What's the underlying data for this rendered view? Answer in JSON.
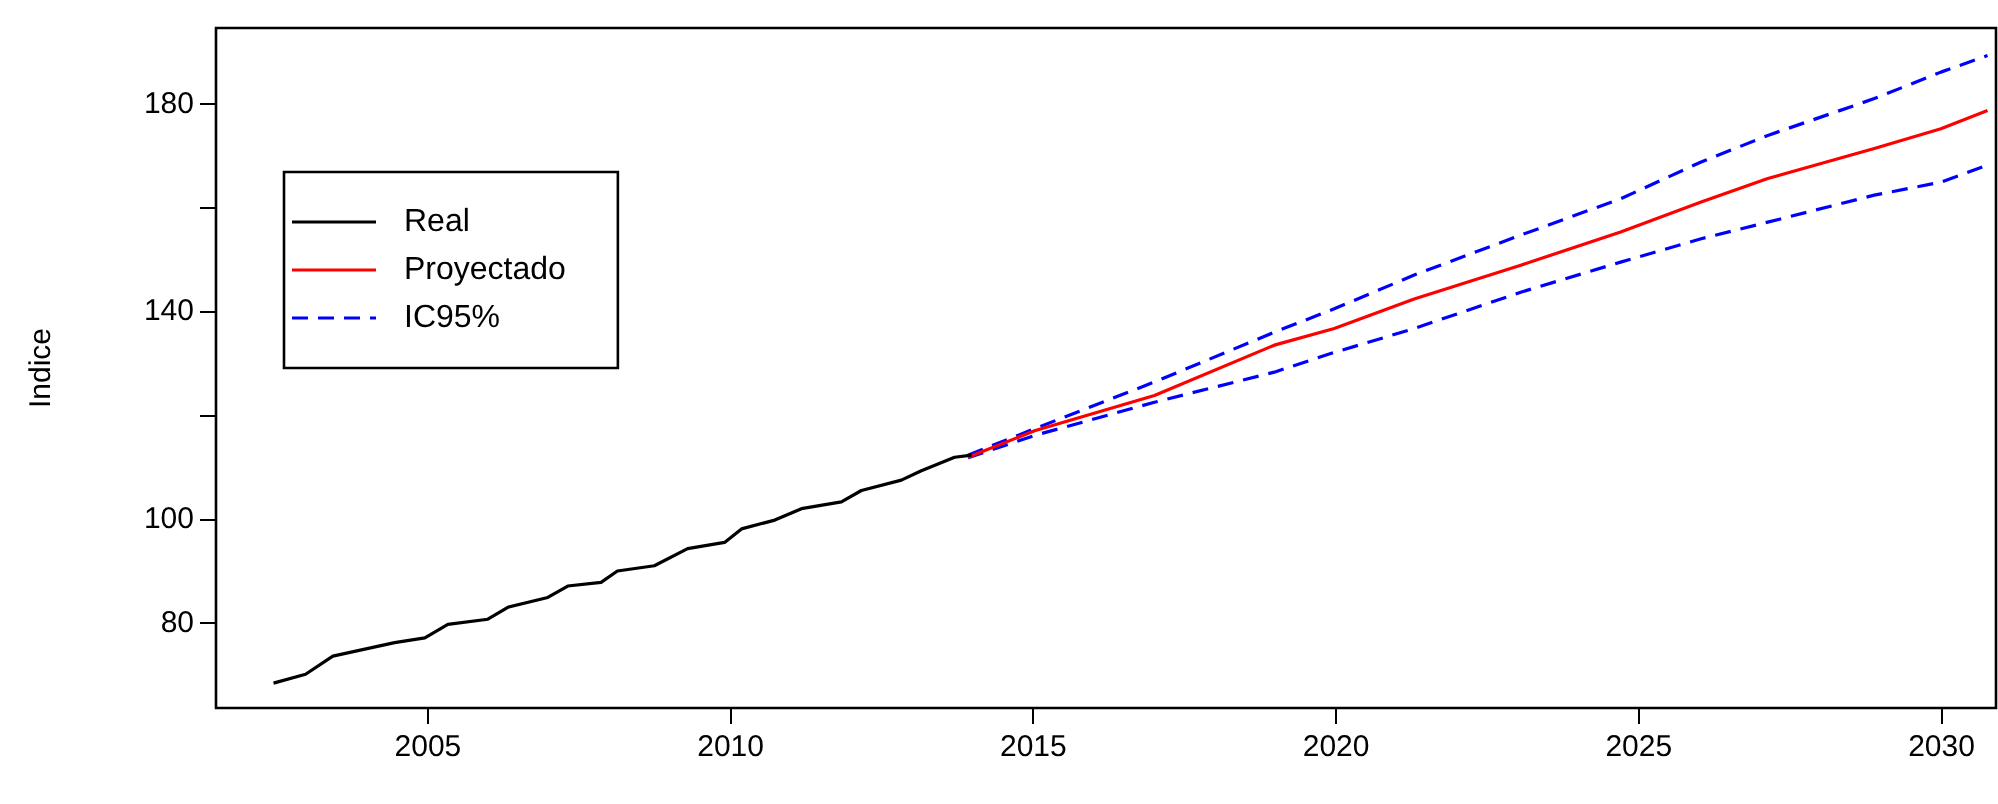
{
  "chart_data": {
    "type": "line",
    "ylabel": "Indice",
    "xlim": [
      2001.5,
      2030.9
    ],
    "ylim": [
      63.7,
      194.7
    ],
    "xticks": [
      2005,
      2010,
      2015,
      2020,
      2025,
      2030
    ],
    "yticks": [
      80,
      100,
      {
        "value": 120,
        "label": null
      },
      140,
      {
        "value": 160,
        "label": null
      },
      180
    ],
    "grid": false,
    "legend": "top left",
    "marker": "none",
    "series": [
      {
        "name": "Real",
        "color": "#000000",
        "line_style": "solid",
        "x": [
          2002.45,
          2002.98,
          2003.43,
          2004.45,
          2004.95,
          2005.33,
          2005.99,
          2006.32,
          2006.98,
          2007.31,
          2007.86,
          2008.13,
          2008.74,
          2009.29,
          2009.9,
          2010.18,
          2010.73,
          2011.17,
          2011.83,
          2012.16,
          2012.82,
          2013.15,
          2013.7,
          2013.98
        ],
        "values": [
          68.5,
          70.2,
          73.7,
          76.3,
          77.2,
          79.8,
          80.8,
          83.1,
          85.0,
          87.2,
          87.9,
          90.1,
          91.1,
          94.4,
          95.6,
          98.2,
          99.9,
          102.1,
          103.4,
          105.6,
          107.6,
          109.4,
          112.0,
          112.4
        ]
      },
      {
        "name": "Proyectado",
        "color": "#ff0000",
        "line_style": "solid",
        "x": [
          2013.92,
          2015.02,
          2017.0,
          2018.98,
          2019.97,
          2021.29,
          2023.05,
          2024.7,
          2026.03,
          2027.13,
          2028.89,
          2029.99,
          2030.76
        ],
        "values": [
          112.0,
          117.1,
          123.9,
          133.6,
          136.8,
          142.5,
          149.0,
          155.4,
          161.2,
          165.7,
          171.5,
          175.3,
          178.8
        ]
      },
      {
        "name": "IC95%",
        "color": "#0000ff",
        "line_style": "dashed",
        "x": [
          2013.92,
          2015.02,
          2017.0,
          2018.98,
          2019.97,
          2021.29,
          2023.05,
          2024.7,
          2026.03,
          2027.13,
          2028.89,
          2029.99,
          2030.76
        ],
        "values": [
          112.4,
          117.5,
          126.5,
          136.1,
          140.6,
          147.1,
          154.8,
          161.8,
          168.9,
          174.0,
          181.1,
          186.2,
          189.4
        ]
      },
      {
        "color": "#0000ff",
        "line_style": "dashed",
        "x": [
          2013.92,
          2015.02,
          2017.0,
          2018.98,
          2019.97,
          2021.29,
          2023.05,
          2024.7,
          2026.03,
          2027.13,
          2028.89,
          2029.99,
          2030.76
        ],
        "values": [
          111.9,
          116.2,
          122.6,
          128.4,
          132.2,
          136.8,
          143.8,
          149.6,
          154.1,
          157.3,
          162.5,
          165.0,
          168.3
        ]
      }
    ]
  }
}
